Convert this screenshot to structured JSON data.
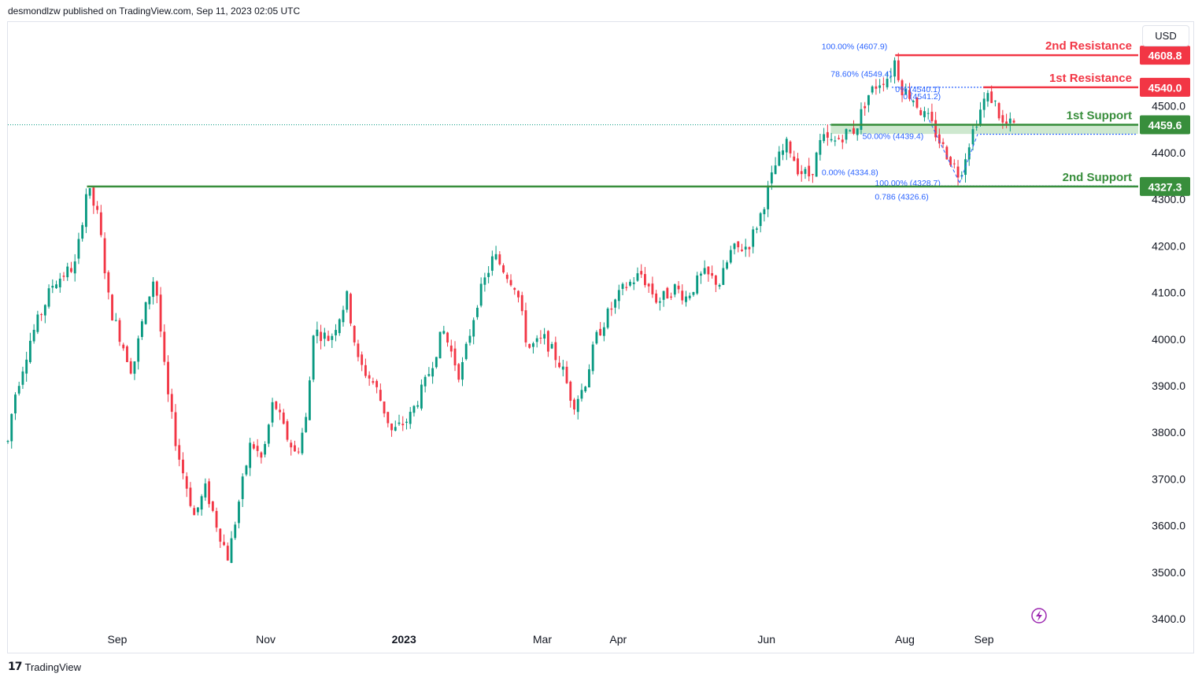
{
  "header": {
    "publisher_text": "desmondlzw published on TradingView.com, Sep 11, 2023 02:05 UTC"
  },
  "currency": "USD",
  "footer": {
    "brand": "TradingView"
  },
  "colors": {
    "up": "#089981",
    "down": "#f23645",
    "support": "#388e3c",
    "resistance": "#f23645",
    "fib": "#2962ff",
    "grid": "#f0f3fa"
  },
  "chart_data": {
    "type": "candlestick",
    "ylim": [
      3380,
      4680
    ],
    "y_ticks": [
      3400,
      3500,
      3600,
      3700,
      3800,
      3900,
      4000,
      4100,
      4200,
      4300,
      4400,
      4500
    ],
    "x_ticks": [
      {
        "label": "Sep",
        "x": 0.0968
      },
      {
        "label": "Nov",
        "x": 0.2281
      },
      {
        "label": "2023",
        "x": 0.3504,
        "bold": true
      },
      {
        "label": "Mar",
        "x": 0.4728
      },
      {
        "label": "Apr",
        "x": 0.5399
      },
      {
        "label": "Jun",
        "x": 0.6711
      },
      {
        "label": "Aug",
        "x": 0.7935
      },
      {
        "label": "Sep",
        "x": 0.8636
      }
    ],
    "path": [
      [
        0.0,
        3780
      ],
      [
        0.005,
        3870
      ],
      [
        0.02,
        4000
      ],
      [
        0.04,
        4120
      ],
      [
        0.06,
        4160
      ],
      [
        0.07,
        4327
      ],
      [
        0.08,
        4260
      ],
      [
        0.09,
        4070
      ],
      [
        0.1,
        4000
      ],
      [
        0.11,
        3930
      ],
      [
        0.12,
        4050
      ],
      [
        0.13,
        4140
      ],
      [
        0.14,
        3900
      ],
      [
        0.15,
        3760
      ],
      [
        0.165,
        3620
      ],
      [
        0.175,
        3680
      ],
      [
        0.185,
        3600
      ],
      [
        0.195,
        3530
      ],
      [
        0.205,
        3660
      ],
      [
        0.215,
        3780
      ],
      [
        0.225,
        3740
      ],
      [
        0.235,
        3870
      ],
      [
        0.245,
        3800
      ],
      [
        0.255,
        3750
      ],
      [
        0.265,
        3840
      ],
      [
        0.27,
        4020
      ],
      [
        0.285,
        4000
      ],
      [
        0.3,
        4090
      ],
      [
        0.31,
        3950
      ],
      [
        0.325,
        3900
      ],
      [
        0.34,
        3800
      ],
      [
        0.355,
        3830
      ],
      [
        0.37,
        3910
      ],
      [
        0.385,
        4020
      ],
      [
        0.4,
        3920
      ],
      [
        0.415,
        4080
      ],
      [
        0.43,
        4180
      ],
      [
        0.45,
        4110
      ],
      [
        0.46,
        3980
      ],
      [
        0.475,
        4000
      ],
      [
        0.49,
        3940
      ],
      [
        0.5,
        3860
      ],
      [
        0.51,
        3900
      ],
      [
        0.52,
        4000
      ],
      [
        0.53,
        4050
      ],
      [
        0.545,
        4110
      ],
      [
        0.56,
        4140
      ],
      [
        0.575,
        4080
      ],
      [
        0.59,
        4110
      ],
      [
        0.6,
        4090
      ],
      [
        0.615,
        4140
      ],
      [
        0.63,
        4120
      ],
      [
        0.64,
        4190
      ],
      [
        0.655,
        4200
      ],
      [
        0.665,
        4260
      ],
      [
        0.68,
        4380
      ],
      [
        0.69,
        4420
      ],
      [
        0.7,
        4360
      ],
      [
        0.71,
        4350
      ],
      [
        0.72,
        4430
      ],
      [
        0.73,
        4420
      ],
      [
        0.74,
        4440
      ],
      [
        0.75,
        4450
      ],
      [
        0.76,
        4520
      ],
      [
        0.77,
        4550
      ],
      [
        0.78,
        4565
      ],
      [
        0.785,
        4600
      ],
      [
        0.79,
        4540
      ],
      [
        0.8,
        4520
      ],
      [
        0.81,
        4480
      ],
      [
        0.815,
        4470
      ],
      [
        0.825,
        4420
      ],
      [
        0.835,
        4380
      ],
      [
        0.842,
        4350
      ],
      [
        0.85,
        4420
      ],
      [
        0.857,
        4470
      ],
      [
        0.865,
        4520
      ],
      [
        0.872,
        4515
      ],
      [
        0.88,
        4460
      ],
      [
        0.89,
        4460
      ]
    ],
    "levels": [
      {
        "label": "2nd Resistance",
        "value": 4608.8,
        "badge": "4608.8",
        "type": "resistance",
        "x_start": 0.785
      },
      {
        "label": "1st Resistance",
        "value": 4540.0,
        "badge": "4540.0",
        "type": "resistance",
        "x_start": 0.863
      },
      {
        "label": "1st Support",
        "value": 4459.6,
        "badge": "4459.6",
        "type": "support",
        "x_start": 0.728
      },
      {
        "label": "2nd Support",
        "value": 4327.3,
        "badge": "4327.3",
        "type": "support",
        "x_start": 0.07
      }
    ],
    "fib_labels": [
      {
        "text": "100.00% (4607.9)",
        "value": 4607.9,
        "x": 0.778,
        "anchor": "end",
        "dy": -8
      },
      {
        "text": "78.60% (4549.4)",
        "value": 4549.4,
        "x": 0.782,
        "anchor": "end",
        "dy": -8
      },
      {
        "text": "0% (4540.1)",
        "value": 4540.1,
        "x": 0.785,
        "anchor": "start",
        "dy": 6
      },
      {
        "text": "0 (4541.2)",
        "value": 4541.2,
        "x": 0.792,
        "anchor": "start",
        "dy": 16
      },
      {
        "text": "50.00% (4439.4)",
        "value": 4439.4,
        "x": 0.756,
        "anchor": "start",
        "dy": 6
      },
      {
        "text": "0.00% (4334.8)",
        "value": 4334.8,
        "x": 0.72,
        "anchor": "start",
        "dy": -10
      },
      {
        "text": "100.00% (4328.7)",
        "value": 4328.7,
        "x": 0.767,
        "anchor": "start",
        "dy": 0
      },
      {
        "text": "0.786 (4326.6)",
        "value": 4326.6,
        "x": 0.767,
        "anchor": "start",
        "dy": 16
      }
    ],
    "current_price": 4459.6
  }
}
